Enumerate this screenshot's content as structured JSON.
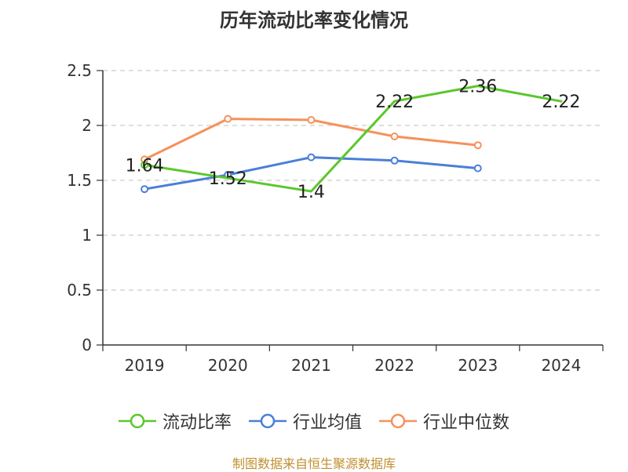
{
  "title": "历年流动比率变化情况",
  "source": "制图数据来自恒生聚源数据库",
  "colors": {
    "grid": "#cccccc",
    "axis": "#333333",
    "text": "#333333"
  },
  "chart_data": {
    "type": "line",
    "categories": [
      "2019",
      "2020",
      "2021",
      "2022",
      "2023",
      "2024"
    ],
    "yticks": [
      "0",
      "0.5",
      "1",
      "1.5",
      "2",
      "2.5"
    ],
    "ylim": [
      0,
      2.5
    ],
    "grid": true,
    "legend_position": "bottom",
    "series": [
      {
        "name": "流动比率",
        "color": "#5cc72d",
        "values": [
          1.64,
          1.52,
          1.4,
          2.22,
          2.36,
          2.22
        ],
        "labels": [
          "1.64",
          "1.52",
          "1.4",
          "2.22",
          "2.36",
          "2.22"
        ]
      },
      {
        "name": "行业均值",
        "color": "#4a7fd8",
        "values": [
          1.42,
          1.55,
          1.71,
          1.68,
          1.61,
          null
        ],
        "labels": []
      },
      {
        "name": "行业中位数",
        "color": "#f5925a",
        "values": [
          1.69,
          2.06,
          2.05,
          1.9,
          1.82,
          null
        ],
        "labels": []
      }
    ]
  }
}
